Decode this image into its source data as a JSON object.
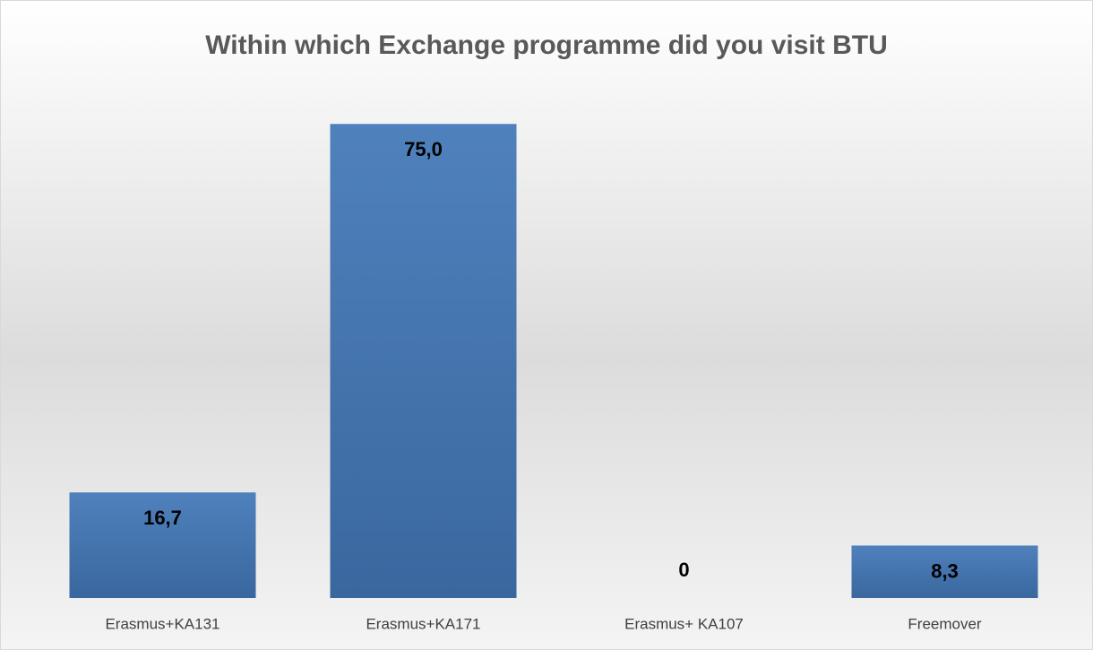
{
  "chart_data": {
    "type": "bar",
    "title": "Within which Exchange programme did you visit BTU",
    "categories": [
      "Erasmus+KA131",
      "Erasmus+KA171",
      "Erasmus+ KA107",
      "Freemover"
    ],
    "values": [
      16.7,
      75.0,
      0,
      8.3
    ],
    "value_labels": [
      "16,7",
      "75,0",
      "0",
      "8,3"
    ],
    "color": "#4f81bd",
    "ylim": [
      0,
      80
    ]
  }
}
